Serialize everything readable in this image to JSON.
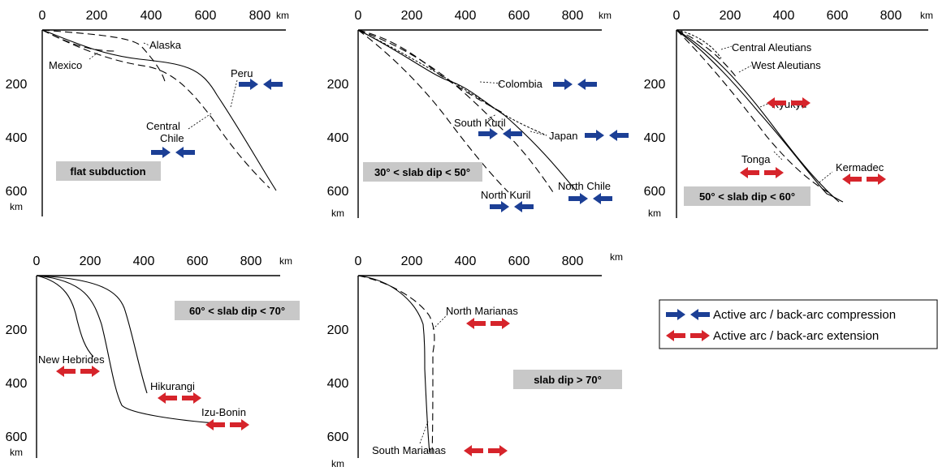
{
  "units": {
    "distance": "km",
    "depth": "km"
  },
  "x_ticks": [
    "0",
    "200",
    "400",
    "600",
    "800"
  ],
  "y_ticks": [
    "200",
    "400",
    "600"
  ],
  "colors": {
    "compression": "#1c3f95",
    "extension": "#d6242b"
  },
  "panels": [
    {
      "category": "flat subduction",
      "slabs": [
        {
          "name": "Alaska",
          "style": "dashed",
          "arrows": "none"
        },
        {
          "name": "Mexico",
          "style": "dashed",
          "arrows": "none"
        },
        {
          "name": "Peru",
          "style": "solid",
          "arrows": "compression"
        },
        {
          "name": "Central Chile",
          "style": "dashed",
          "arrows": "compression"
        }
      ]
    },
    {
      "category": "30° < slab dip < 50°",
      "slabs": [
        {
          "name": "Colombia",
          "style": "dashed",
          "arrows": "compression"
        },
        {
          "name": "South Kuril",
          "style": "dashed",
          "arrows": "compression"
        },
        {
          "name": "Japan",
          "style": "dotted",
          "arrows": "compression"
        },
        {
          "name": "North Chile",
          "style": "solid",
          "arrows": "compression"
        },
        {
          "name": "North Kuril",
          "style": "dashed",
          "arrows": "compression"
        }
      ]
    },
    {
      "category": "50° < slab dip < 60°",
      "slabs": [
        {
          "name": "Central Aleutians",
          "style": "dotted",
          "arrows": "none"
        },
        {
          "name": "West Aleutians",
          "style": "dashed",
          "arrows": "none"
        },
        {
          "name": "Ryukyu",
          "style": "solid",
          "arrows": "extension"
        },
        {
          "name": "Tonga",
          "style": "dashed",
          "arrows": "extension"
        },
        {
          "name": "Kermadec",
          "style": "solid",
          "arrows": "extension"
        }
      ]
    },
    {
      "category": "60° < slab dip < 70°",
      "slabs": [
        {
          "name": "New Hebrides",
          "style": "solid",
          "arrows": "extension"
        },
        {
          "name": "Hikurangi",
          "style": "solid",
          "arrows": "extension"
        },
        {
          "name": "Izu-Bonin",
          "style": "solid",
          "arrows": "extension"
        }
      ]
    },
    {
      "category": "slab dip > 70°",
      "slabs": [
        {
          "name": "North Marianas",
          "style": "dashed",
          "arrows": "extension"
        },
        {
          "name": "South Marianas",
          "style": "solid",
          "arrows": "extension"
        }
      ]
    }
  ],
  "legend": [
    {
      "label": "Active arc / back-arc compression",
      "type": "compression"
    },
    {
      "label": "Active arc / back-arc extension",
      "type": "extension"
    }
  ]
}
